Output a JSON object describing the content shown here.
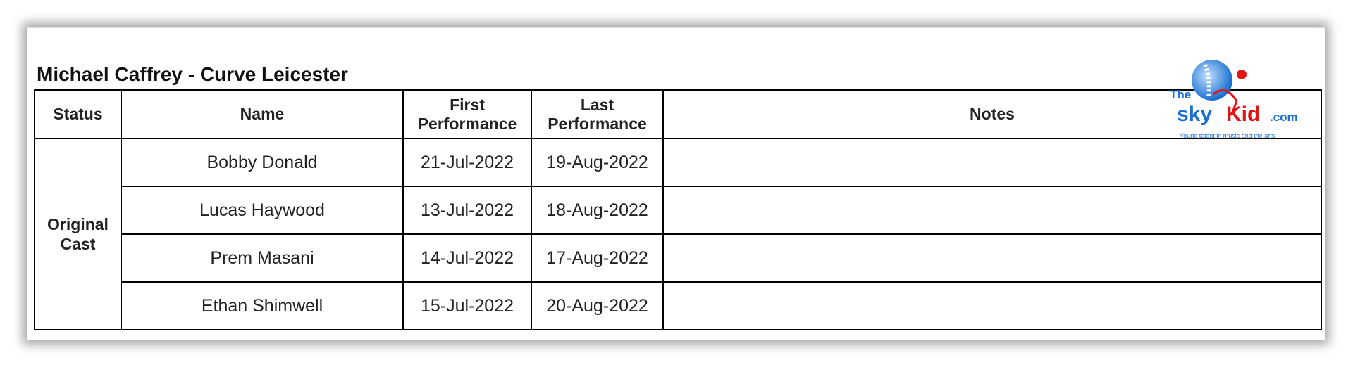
{
  "title": "Michael Caffrey - Curve Leicester",
  "logo": {
    "text_the": "The",
    "text_sky": "sky",
    "text_kid": "Kid",
    "text_com": ".com",
    "tagline": "Young talent in music and the arts",
    "colors": {
      "blue": "#1a6fd1",
      "red": "#e31414"
    }
  },
  "table": {
    "headers": {
      "status": "Status",
      "name": "Name",
      "first": "First Performance",
      "last": "Last Performance",
      "notes": "Notes"
    },
    "group_status": "Original Cast",
    "rows": [
      {
        "name": "Bobby Donald",
        "first": "21-Jul-2022",
        "last": "19-Aug-2022",
        "notes": ""
      },
      {
        "name": "Lucas Haywood",
        "first": "13-Jul-2022",
        "last": "18-Aug-2022",
        "notes": ""
      },
      {
        "name": "Prem Masani",
        "first": "14-Jul-2022",
        "last": "17-Aug-2022",
        "notes": ""
      },
      {
        "name": "Ethan Shimwell",
        "first": "15-Jul-2022",
        "last": "20-Aug-2022",
        "notes": ""
      }
    ]
  }
}
